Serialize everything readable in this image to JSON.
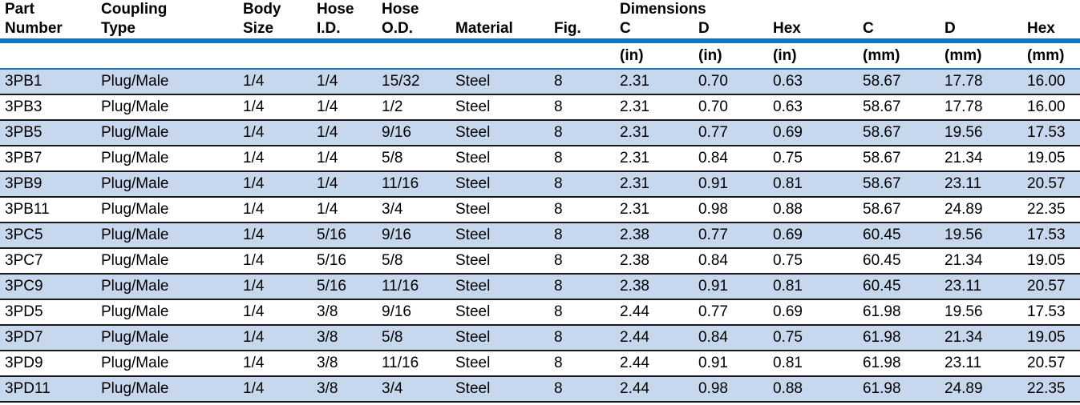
{
  "colors": {
    "rule_blue": "#1276bd",
    "row_stripe": "#c7d8ee",
    "separator": "#1b1b1b",
    "text": "#000000",
    "background": "#ffffff"
  },
  "table": {
    "group_header": "Dimensions",
    "columns": [
      {
        "top": "Part",
        "bottom": "Number",
        "unit": ""
      },
      {
        "top": "Coupling",
        "bottom": "Type",
        "unit": ""
      },
      {
        "top": "Body",
        "bottom": "Size",
        "unit": ""
      },
      {
        "top": "Hose",
        "bottom": "I.D.",
        "unit": ""
      },
      {
        "top": "Hose",
        "bottom": "O.D.",
        "unit": ""
      },
      {
        "top": "",
        "bottom": "Material",
        "unit": ""
      },
      {
        "top": "",
        "bottom": "Fig.",
        "unit": ""
      },
      {
        "top": "Dimensions",
        "bottom": "C",
        "unit": "(in)"
      },
      {
        "top": "",
        "bottom": "D",
        "unit": "(in)"
      },
      {
        "top": "",
        "bottom": "Hex",
        "unit": "(in)"
      },
      {
        "top": "",
        "bottom": "C",
        "unit": "(mm)"
      },
      {
        "top": "",
        "bottom": "D",
        "unit": "(mm)"
      },
      {
        "top": "",
        "bottom": "Hex",
        "unit": "(mm)"
      }
    ],
    "rows": [
      [
        "3PB1",
        "Plug/Male",
        "1/4",
        "1/4",
        "15/32",
        "Steel",
        "8",
        "2.31",
        "0.70",
        "0.63",
        "58.67",
        "17.78",
        "16.00"
      ],
      [
        "3PB3",
        "Plug/Male",
        "1/4",
        "1/4",
        "1/2",
        "Steel",
        "8",
        "2.31",
        "0.70",
        "0.63",
        "58.67",
        "17.78",
        "16.00"
      ],
      [
        "3PB5",
        "Plug/Male",
        "1/4",
        "1/4",
        "9/16",
        "Steel",
        "8",
        "2.31",
        "0.77",
        "0.69",
        "58.67",
        "19.56",
        "17.53"
      ],
      [
        "3PB7",
        "Plug/Male",
        "1/4",
        "1/4",
        "5/8",
        "Steel",
        "8",
        "2.31",
        "0.84",
        "0.75",
        "58.67",
        "21.34",
        "19.05"
      ],
      [
        "3PB9",
        "Plug/Male",
        "1/4",
        "1/4",
        "11/16",
        "Steel",
        "8",
        "2.31",
        "0.91",
        "0.81",
        "58.67",
        "23.11",
        "20.57"
      ],
      [
        "3PB11",
        "Plug/Male",
        "1/4",
        "1/4",
        "3/4",
        "Steel",
        "8",
        "2.31",
        "0.98",
        "0.88",
        "58.67",
        "24.89",
        "22.35"
      ],
      [
        "3PC5",
        "Plug/Male",
        "1/4",
        "5/16",
        "9/16",
        "Steel",
        "8",
        "2.38",
        "0.77",
        "0.69",
        "60.45",
        "19.56",
        "17.53"
      ],
      [
        "3PC7",
        "Plug/Male",
        "1/4",
        "5/16",
        "5/8",
        "Steel",
        "8",
        "2.38",
        "0.84",
        "0.75",
        "60.45",
        "21.34",
        "19.05"
      ],
      [
        "3PC9",
        "Plug/Male",
        "1/4",
        "5/16",
        "11/16",
        "Steel",
        "8",
        "2.38",
        "0.91",
        "0.81",
        "60.45",
        "23.11",
        "20.57"
      ],
      [
        "3PD5",
        "Plug/Male",
        "1/4",
        "3/8",
        "9/16",
        "Steel",
        "8",
        "2.44",
        "0.77",
        "0.69",
        "61.98",
        "19.56",
        "17.53"
      ],
      [
        "3PD7",
        "Plug/Male",
        "1/4",
        "3/8",
        "5/8",
        "Steel",
        "8",
        "2.44",
        "0.84",
        "0.75",
        "61.98",
        "21.34",
        "19.05"
      ],
      [
        "3PD9",
        "Plug/Male",
        "1/4",
        "3/8",
        "11/16",
        "Steel",
        "8",
        "2.44",
        "0.91",
        "0.81",
        "61.98",
        "23.11",
        "20.57"
      ],
      [
        "3PD11",
        "Plug/Male",
        "1/4",
        "3/8",
        "3/4",
        "Steel",
        "8",
        "2.44",
        "0.98",
        "0.88",
        "61.98",
        "24.89",
        "22.35"
      ]
    ]
  }
}
